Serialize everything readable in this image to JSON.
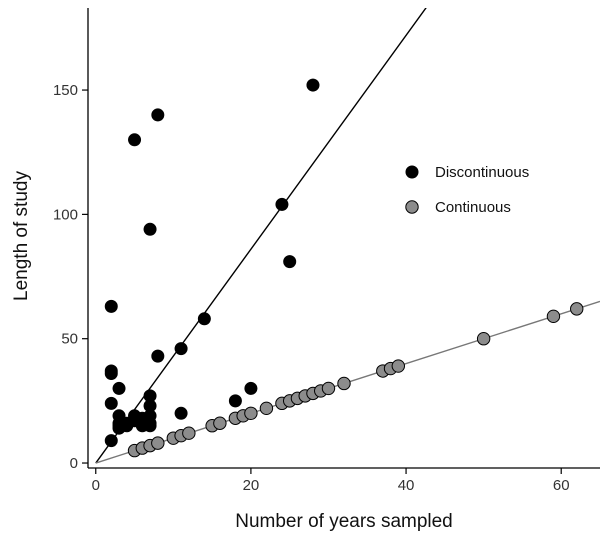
{
  "chart_data": {
    "type": "scatter",
    "title": "",
    "xlabel": "Number of years sampled",
    "ylabel": "Length of study",
    "xlim": [
      -1,
      65
    ],
    "ylim": [
      -2,
      183
    ],
    "x_ticks": [
      0,
      20,
      40,
      60
    ],
    "y_ticks": [
      0,
      50,
      100,
      150
    ],
    "x_tick_labels": [
      "0",
      "20",
      "40",
      "60"
    ],
    "y_tick_labels": [
      "0",
      "50",
      "100",
      "150"
    ],
    "grid": false,
    "legend_position": "right",
    "series": [
      {
        "name": "Discontinuous",
        "color": "#000000",
        "points": [
          [
            2,
            9
          ],
          [
            2,
            24
          ],
          [
            2,
            36
          ],
          [
            2,
            37
          ],
          [
            2,
            63
          ],
          [
            3,
            14
          ],
          [
            3,
            15
          ],
          [
            3,
            16
          ],
          [
            3,
            19
          ],
          [
            3,
            30
          ],
          [
            4,
            15
          ],
          [
            4,
            16
          ],
          [
            5,
            17
          ],
          [
            5,
            19
          ],
          [
            5,
            130
          ],
          [
            6,
            15
          ],
          [
            6,
            16
          ],
          [
            6,
            18
          ],
          [
            7,
            15
          ],
          [
            7,
            16
          ],
          [
            7,
            19
          ],
          [
            7,
            23
          ],
          [
            7,
            27
          ],
          [
            7,
            94
          ],
          [
            8,
            43
          ],
          [
            8,
            140
          ],
          [
            11,
            20
          ],
          [
            11,
            46
          ],
          [
            14,
            58
          ],
          [
            18,
            25
          ],
          [
            20,
            30
          ],
          [
            24,
            104
          ],
          [
            25,
            81
          ],
          [
            28,
            152
          ]
        ],
        "fit_line": {
          "slope": 4.3,
          "intercept": 0
        }
      },
      {
        "name": "Continuous",
        "color": "#8c8c8c",
        "points": [
          [
            5,
            5
          ],
          [
            6,
            6
          ],
          [
            7,
            7
          ],
          [
            8,
            8
          ],
          [
            10,
            10
          ],
          [
            11,
            11
          ],
          [
            12,
            12
          ],
          [
            15,
            15
          ],
          [
            16,
            16
          ],
          [
            18,
            18
          ],
          [
            19,
            19
          ],
          [
            20,
            20
          ],
          [
            22,
            22
          ],
          [
            24,
            24
          ],
          [
            25,
            25
          ],
          [
            26,
            26
          ],
          [
            27,
            27
          ],
          [
            28,
            28
          ],
          [
            29,
            29
          ],
          [
            30,
            30
          ],
          [
            32,
            32
          ],
          [
            37,
            37
          ],
          [
            38,
            38
          ],
          [
            39,
            39
          ],
          [
            50,
            50
          ],
          [
            59,
            59
          ],
          [
            62,
            62
          ]
        ],
        "fit_line": {
          "slope": 1,
          "intercept": 0
        }
      }
    ]
  }
}
